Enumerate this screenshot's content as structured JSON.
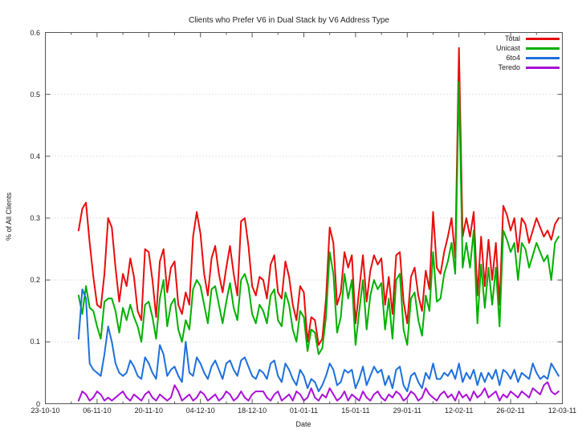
{
  "page": {
    "background": "#ffffff"
  },
  "chart_data": {
    "type": "line",
    "title": "Clients who Prefer V6 in Dual Stack by V6 Address Type",
    "xlabel": "Date",
    "ylabel": "% of All Clients",
    "x_axis": {
      "tick_labels": [
        "23-10-10",
        "06-11-10",
        "20-11-10",
        "04-12-10",
        "18-12-10",
        "01-01-11",
        "15-01-11",
        "29-01-11",
        "12-02-11",
        "26-02-11",
        "12-03-11"
      ],
      "tick_interval_days": 14,
      "minor_tick_interval_days": 7,
      "range_days": [
        0,
        140
      ]
    },
    "y_axis": {
      "tick_labels": [
        "0",
        "0.1",
        "0.2",
        "0.3",
        "0.4",
        "0.5",
        "0.6"
      ],
      "tick_values": [
        0,
        0.1,
        0.2,
        0.3,
        0.4,
        0.5,
        0.6
      ],
      "ylim": [
        0,
        0.6
      ]
    },
    "grid": {
      "horizontal": "dotted",
      "vertical": "none",
      "color": "#c8c8c8"
    },
    "axis_color": "#555555",
    "legend": {
      "position": "top-right",
      "entries": [
        "Total",
        "Unicast",
        "6to4",
        "Teredo"
      ]
    },
    "series": [
      {
        "name": "Total",
        "color": "#e80c0c",
        "start_day": 9,
        "values": [
          0.28,
          0.315,
          0.325,
          0.26,
          0.205,
          0.16,
          0.155,
          0.21,
          0.3,
          0.285,
          0.22,
          0.165,
          0.21,
          0.19,
          0.235,
          0.205,
          0.15,
          0.135,
          0.25,
          0.245,
          0.2,
          0.14,
          0.23,
          0.25,
          0.18,
          0.22,
          0.23,
          0.16,
          0.145,
          0.18,
          0.16,
          0.27,
          0.31,
          0.275,
          0.21,
          0.175,
          0.235,
          0.255,
          0.21,
          0.18,
          0.22,
          0.255,
          0.21,
          0.175,
          0.295,
          0.3,
          0.255,
          0.19,
          0.175,
          0.205,
          0.2,
          0.17,
          0.225,
          0.24,
          0.18,
          0.17,
          0.23,
          0.205,
          0.16,
          0.135,
          0.19,
          0.18,
          0.1,
          0.14,
          0.135,
          0.095,
          0.105,
          0.17,
          0.285,
          0.26,
          0.16,
          0.18,
          0.245,
          0.22,
          0.24,
          0.13,
          0.185,
          0.24,
          0.165,
          0.215,
          0.24,
          0.225,
          0.235,
          0.16,
          0.205,
          0.145,
          0.24,
          0.245,
          0.165,
          0.13,
          0.205,
          0.22,
          0.175,
          0.15,
          0.215,
          0.185,
          0.31,
          0.22,
          0.21,
          0.245,
          0.27,
          0.3,
          0.235,
          0.575,
          0.27,
          0.3,
          0.27,
          0.31,
          0.175,
          0.27,
          0.19,
          0.265,
          0.2,
          0.26,
          0.16,
          0.32,
          0.305,
          0.28,
          0.3,
          0.245,
          0.3,
          0.29,
          0.26,
          0.28,
          0.3,
          0.285,
          0.27,
          0.28,
          0.265,
          0.29,
          0.3
        ]
      },
      {
        "name": "Unicast",
        "color": "#00b000",
        "start_day": 9,
        "values": [
          0.175,
          0.145,
          0.19,
          0.155,
          0.15,
          0.125,
          0.105,
          0.165,
          0.17,
          0.17,
          0.15,
          0.115,
          0.155,
          0.135,
          0.16,
          0.14,
          0.125,
          0.1,
          0.16,
          0.165,
          0.14,
          0.105,
          0.17,
          0.2,
          0.125,
          0.16,
          0.17,
          0.12,
          0.1,
          0.135,
          0.12,
          0.185,
          0.2,
          0.19,
          0.16,
          0.13,
          0.185,
          0.19,
          0.16,
          0.13,
          0.165,
          0.195,
          0.155,
          0.135,
          0.2,
          0.21,
          0.19,
          0.145,
          0.13,
          0.16,
          0.15,
          0.13,
          0.175,
          0.185,
          0.135,
          0.125,
          0.18,
          0.16,
          0.12,
          0.1,
          0.15,
          0.14,
          0.085,
          0.12,
          0.115,
          0.08,
          0.09,
          0.14,
          0.245,
          0.21,
          0.115,
          0.14,
          0.21,
          0.17,
          0.2,
          0.095,
          0.15,
          0.2,
          0.12,
          0.175,
          0.2,
          0.185,
          0.195,
          0.12,
          0.17,
          0.105,
          0.2,
          0.21,
          0.12,
          0.095,
          0.17,
          0.18,
          0.135,
          0.11,
          0.175,
          0.15,
          0.245,
          0.165,
          0.17,
          0.21,
          0.23,
          0.26,
          0.21,
          0.52,
          0.22,
          0.26,
          0.22,
          0.28,
          0.13,
          0.225,
          0.155,
          0.22,
          0.16,
          0.22,
          0.125,
          0.28,
          0.265,
          0.245,
          0.26,
          0.2,
          0.26,
          0.25,
          0.22,
          0.24,
          0.26,
          0.245,
          0.23,
          0.24,
          0.2,
          0.26,
          0.27
        ]
      },
      {
        "name": "6to4",
        "color": "#1e6fdc",
        "start_day": 9,
        "values": [
          0.105,
          0.185,
          0.17,
          0.065,
          0.055,
          0.05,
          0.045,
          0.08,
          0.125,
          0.1,
          0.065,
          0.05,
          0.045,
          0.05,
          0.07,
          0.06,
          0.045,
          0.04,
          0.075,
          0.065,
          0.05,
          0.04,
          0.095,
          0.08,
          0.045,
          0.055,
          0.06,
          0.045,
          0.035,
          0.1,
          0.05,
          0.045,
          0.075,
          0.065,
          0.05,
          0.04,
          0.06,
          0.07,
          0.055,
          0.04,
          0.065,
          0.07,
          0.055,
          0.045,
          0.07,
          0.075,
          0.06,
          0.045,
          0.04,
          0.055,
          0.05,
          0.04,
          0.065,
          0.07,
          0.045,
          0.035,
          0.065,
          0.055,
          0.04,
          0.03,
          0.055,
          0.045,
          0.025,
          0.04,
          0.035,
          0.02,
          0.03,
          0.045,
          0.065,
          0.055,
          0.03,
          0.035,
          0.055,
          0.05,
          0.055,
          0.025,
          0.04,
          0.06,
          0.03,
          0.045,
          0.06,
          0.05,
          0.055,
          0.03,
          0.045,
          0.025,
          0.055,
          0.06,
          0.03,
          0.02,
          0.045,
          0.05,
          0.035,
          0.025,
          0.05,
          0.04,
          0.065,
          0.04,
          0.04,
          0.05,
          0.045,
          0.055,
          0.04,
          0.065,
          0.035,
          0.05,
          0.04,
          0.055,
          0.03,
          0.05,
          0.035,
          0.05,
          0.04,
          0.055,
          0.03,
          0.055,
          0.05,
          0.04,
          0.055,
          0.035,
          0.05,
          0.045,
          0.04,
          0.065,
          0.05,
          0.04,
          0.045,
          0.04,
          0.065,
          0.055,
          0.045
        ]
      },
      {
        "name": "Teredo",
        "color": "#aa10d8",
        "start_day": 9,
        "values": [
          0.005,
          0.02,
          0.015,
          0.005,
          0.01,
          0.02,
          0.015,
          0.005,
          0.01,
          0.005,
          0.01,
          0.015,
          0.02,
          0.01,
          0.005,
          0.015,
          0.01,
          0.005,
          0.015,
          0.02,
          0.01,
          0.005,
          0.015,
          0.01,
          0.005,
          0.01,
          0.03,
          0.02,
          0.005,
          0.01,
          0.015,
          0.005,
          0.01,
          0.02,
          0.015,
          0.005,
          0.01,
          0.015,
          0.005,
          0.01,
          0.02,
          0.015,
          0.005,
          0.01,
          0.02,
          0.01,
          0.005,
          0.015,
          0.02,
          0.02,
          0.02,
          0.01,
          0.005,
          0.015,
          0.02,
          0.005,
          0.01,
          0.015,
          0.005,
          0.02,
          0.015,
          0.005,
          0.01,
          0.025,
          0.01,
          0.005,
          0.015,
          0.01,
          0.025,
          0.015,
          0.005,
          0.01,
          0.02,
          0.005,
          0.015,
          0.01,
          0.005,
          0.02,
          0.01,
          0.005,
          0.015,
          0.02,
          0.01,
          0.005,
          0.015,
          0.01,
          0.02,
          0.015,
          0.005,
          0.01,
          0.02,
          0.015,
          0.005,
          0.01,
          0.025,
          0.015,
          0.01,
          0.005,
          0.015,
          0.02,
          0.01,
          0.015,
          0.005,
          0.02,
          0.01,
          0.015,
          0.005,
          0.02,
          0.01,
          0.015,
          0.025,
          0.01,
          0.015,
          0.02,
          0.005,
          0.015,
          0.01,
          0.02,
          0.015,
          0.01,
          0.02,
          0.015,
          0.01,
          0.025,
          0.02,
          0.015,
          0.03,
          0.035,
          0.02,
          0.015,
          0.02
        ]
      }
    ]
  }
}
